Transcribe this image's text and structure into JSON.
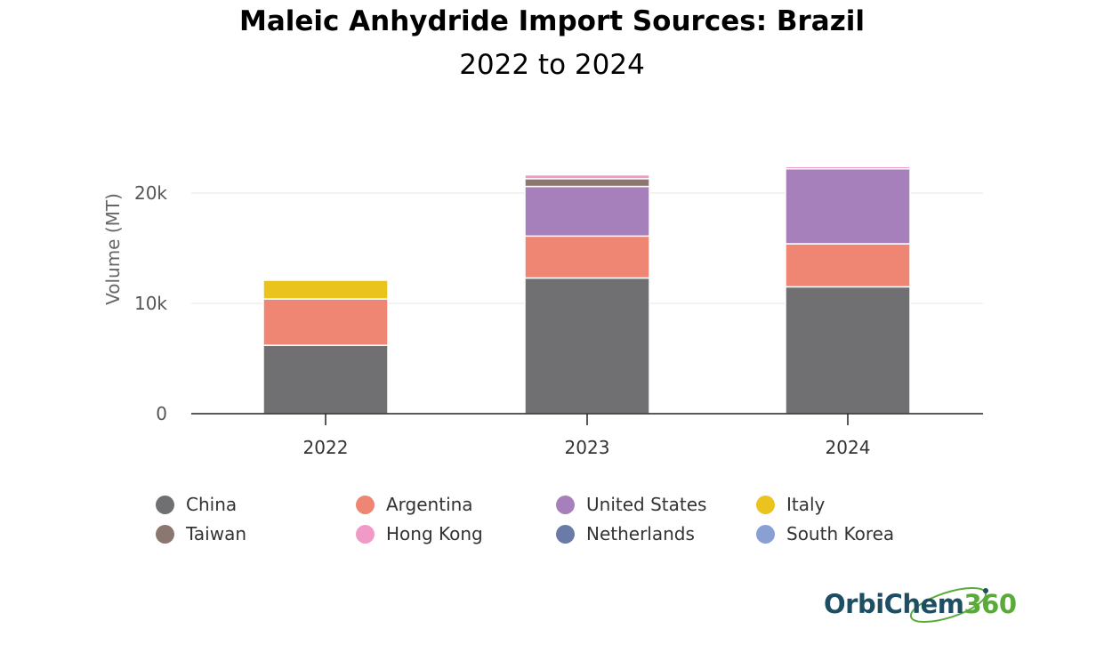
{
  "title": "Maleic Anhydride Import Sources: Brazil",
  "subtitle": "2022 to 2024",
  "logo": {
    "text_main": "OrbiChem",
    "text_num": "360",
    "text": "OrbiChem360"
  },
  "chart_data": {
    "type": "bar",
    "stacked": true,
    "categories": [
      "2022",
      "2023",
      "2024"
    ],
    "ylabel": "Volume (MT)",
    "xlabel": "",
    "ylim": [
      0,
      24000
    ],
    "yticks": [
      {
        "value": 0,
        "label": "0"
      },
      {
        "value": 10000,
        "label": "10k"
      },
      {
        "value": 20000,
        "label": "20k"
      }
    ],
    "grid": true,
    "legend": "bottom",
    "series": [
      {
        "name": "China",
        "color": "#707072",
        "values": [
          6200,
          12300,
          11500
        ]
      },
      {
        "name": "Argentina",
        "color": "#ef8573",
        "values": [
          4200,
          3800,
          3900
        ]
      },
      {
        "name": "United States",
        "color": "#a680bb",
        "values": [
          0,
          4500,
          6800
        ]
      },
      {
        "name": "Italy",
        "color": "#ebc31d",
        "values": [
          1700,
          0,
          0
        ]
      },
      {
        "name": "Taiwan",
        "color": "#8c7770",
        "values": [
          0,
          700,
          0
        ]
      },
      {
        "name": "Hong Kong",
        "color": "#f09ac8",
        "values": [
          0,
          350,
          200
        ]
      },
      {
        "name": "Netherlands",
        "color": "#6a7ba7",
        "values": [
          0,
          0,
          0
        ]
      },
      {
        "name": "South Korea",
        "color": "#8a9fd2",
        "values": [
          0,
          0,
          0
        ]
      }
    ]
  }
}
